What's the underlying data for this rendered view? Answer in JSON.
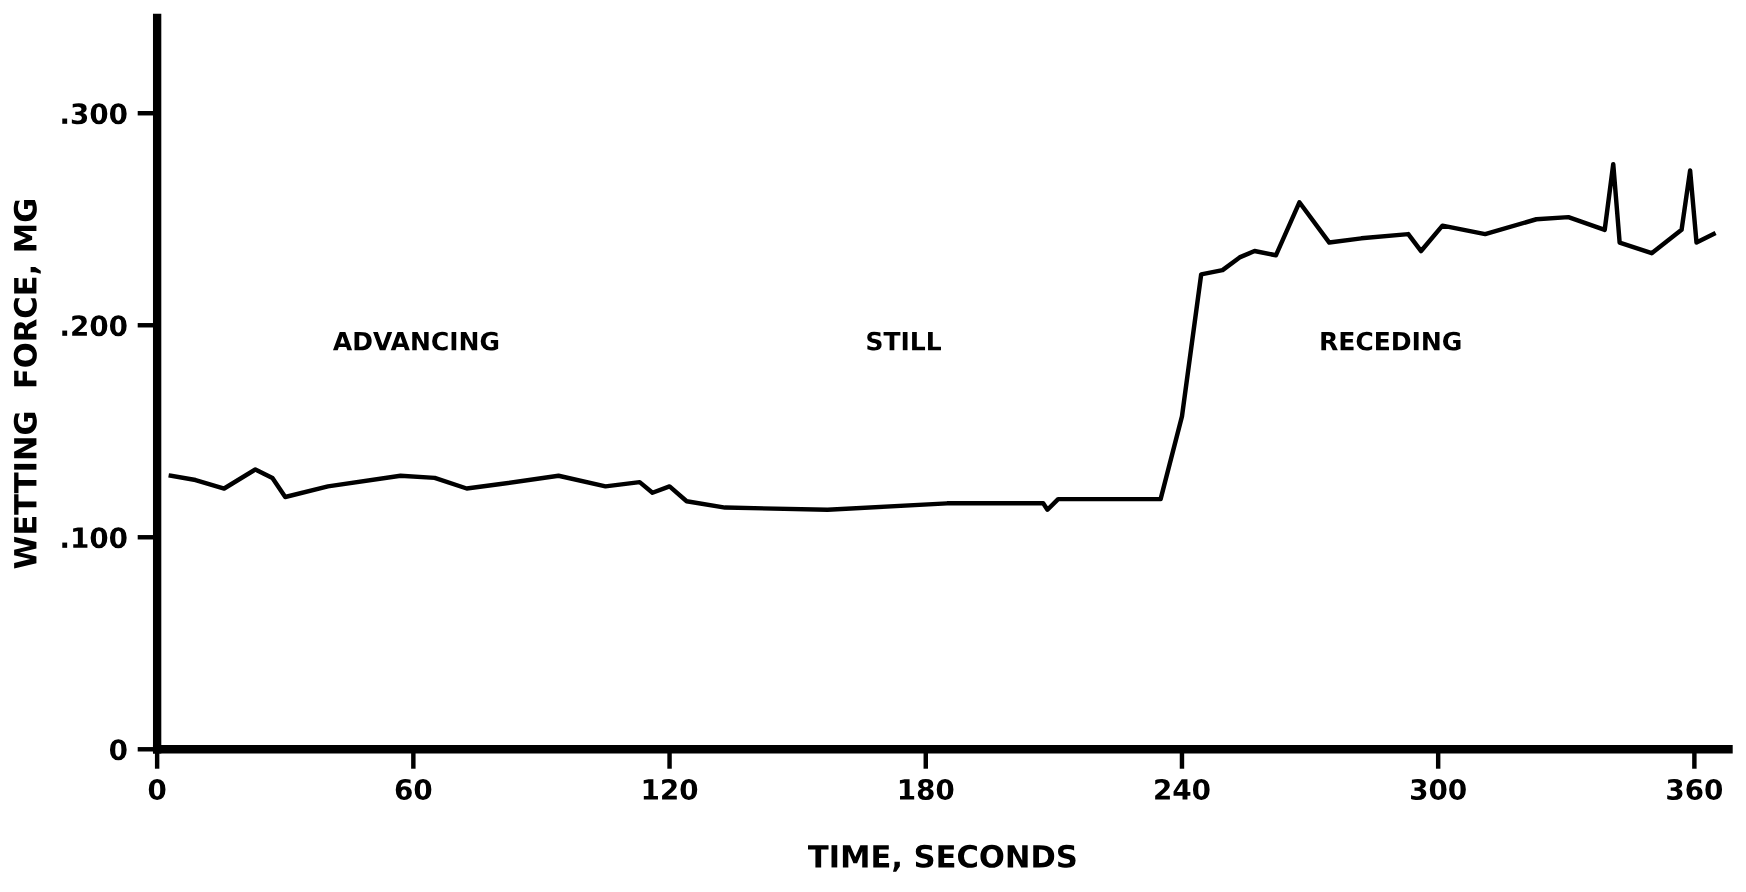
{
  "chart_data": {
    "type": "line",
    "xlabel": "TIME, SECONDS",
    "ylabel": "WETTING  FORCE, MG",
    "xlim": [
      0,
      368
    ],
    "ylim": [
      0,
      0.345
    ],
    "xticks": [
      0,
      60,
      120,
      180,
      240,
      300,
      360
    ],
    "yticks": [
      0,
      {
        "value": 0.1,
        "label": ".100"
      },
      {
        "value": 0.2,
        "label": ".200"
      },
      {
        "value": 0.3,
        "label": ".300"
      }
    ],
    "grid": false,
    "legend": false,
    "marker": "none",
    "line_style": "solid",
    "annotations": [
      "ADVANCING",
      "STILL",
      "RECEDING"
    ],
    "series": [
      {
        "color": "#000000",
        "x": [
          3.2,
          9,
          15.7,
          23,
          27,
          30,
          40,
          57,
          65,
          72.5,
          80,
          94,
          105,
          113,
          116,
          120,
          124,
          133,
          157,
          185,
          207.5,
          208.5,
          211,
          235,
          240,
          244.5,
          249.5,
          253.5,
          257,
          262,
          267.5,
          274.5,
          282,
          293,
          296,
          301,
          311,
          323,
          330.5,
          339,
          341,
          342.5,
          350,
          357,
          359,
          360.5,
          364.5
        ],
        "values": [
          0.129,
          0.127,
          0.123,
          0.132,
          0.128,
          0.119,
          0.124,
          0.129,
          0.128,
          0.123,
          0.125,
          0.129,
          0.124,
          0.126,
          0.121,
          0.124,
          0.117,
          0.114,
          0.113,
          0.116,
          0.116,
          0.113,
          0.118,
          0.118,
          0.157,
          0.224,
          0.226,
          0.232,
          0.235,
          0.233,
          0.258,
          0.239,
          0.241,
          0.243,
          0.235,
          0.247,
          0.243,
          0.25,
          0.251,
          0.245,
          0.276,
          0.239,
          0.234,
          0.245,
          0.273,
          0.239,
          0.243
        ]
      }
    ]
  }
}
